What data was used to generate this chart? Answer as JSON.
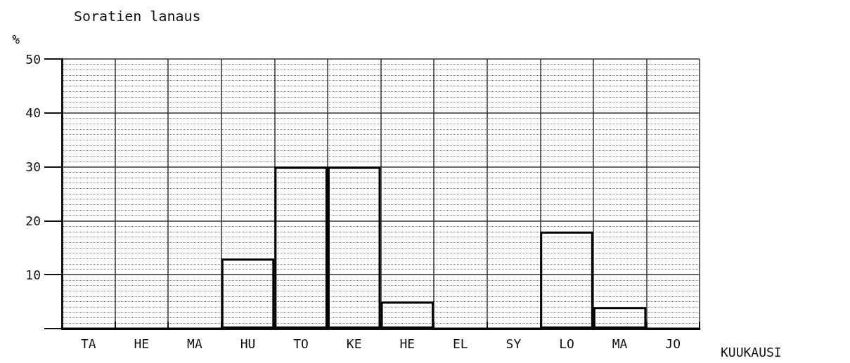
{
  "chart_data": {
    "type": "bar",
    "title": "Soratien lanaus",
    "ylabel": "%",
    "xlabel": "KUUKAUSI",
    "categories": [
      "TA",
      "HE",
      "MA",
      "HU",
      "TO",
      "KE",
      "HE",
      "EL",
      "SY",
      "LO",
      "MA",
      "JO"
    ],
    "values": [
      0,
      0,
      0,
      13,
      30,
      30,
      5,
      0,
      0,
      18,
      4,
      0
    ],
    "color": "#000000",
    "ylim": [
      0,
      50
    ],
    "yticks": [
      {
        "value": 0,
        "label": null
      },
      10,
      20,
      30,
      40,
      50
    ],
    "grid": true
  }
}
